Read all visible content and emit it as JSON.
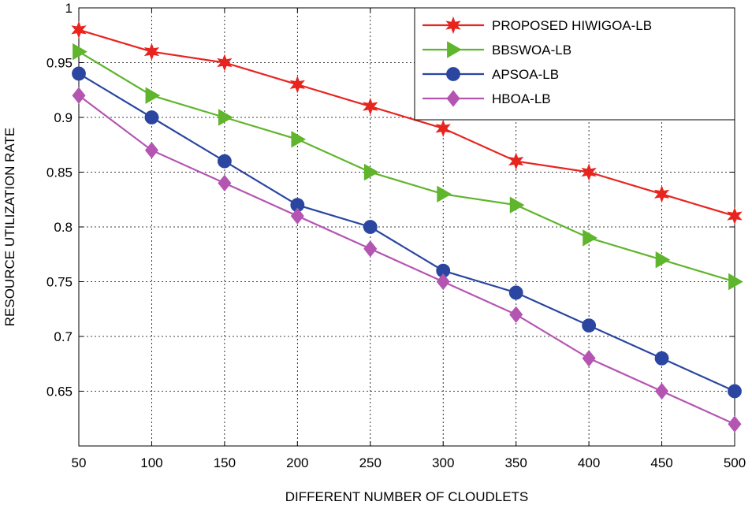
{
  "chart_data": {
    "type": "line",
    "title": "",
    "xlabel": "DIFFERENT NUMBER OF CLOUDLETS",
    "ylabel": "RESOURCE UTILIZATION RATE",
    "x": [
      50,
      100,
      150,
      200,
      250,
      300,
      350,
      400,
      450,
      500
    ],
    "xlim": [
      50,
      500
    ],
    "ylim": [
      0.6,
      1.0
    ],
    "xticks": [
      "50",
      "100",
      "150",
      "200",
      "250",
      "300",
      "350",
      "400",
      "450",
      "500"
    ],
    "yticks": [
      {
        "value": 0.65,
        "label": "0.65"
      },
      {
        "value": 0.7,
        "label": "0.7"
      },
      {
        "value": 0.75,
        "label": "0.75"
      },
      {
        "value": 0.8,
        "label": "0.8"
      },
      {
        "value": 0.85,
        "label": "0.85"
      },
      {
        "value": 0.9,
        "label": "0.9"
      },
      {
        "value": 0.95,
        "label": "0.95"
      },
      {
        "value": 1.0,
        "label": "1"
      }
    ],
    "grid": true,
    "legend_position": "top-right",
    "series": [
      {
        "name": "PROPOSED HIWIGOA-LB",
        "marker": "star",
        "color": "#e8241f",
        "values": [
          0.98,
          0.96,
          0.95,
          0.93,
          0.91,
          0.89,
          0.86,
          0.85,
          0.83,
          0.81
        ]
      },
      {
        "name": "BBSWOA-LB",
        "marker": "triangle-right",
        "color": "#5fb52b",
        "values": [
          0.96,
          0.92,
          0.9,
          0.88,
          0.85,
          0.83,
          0.82,
          0.79,
          0.77,
          0.75
        ]
      },
      {
        "name": "APSOA-LB",
        "marker": "circle",
        "color": "#2a46a0",
        "values": [
          0.94,
          0.9,
          0.86,
          0.82,
          0.8,
          0.76,
          0.74,
          0.71,
          0.68,
          0.65
        ]
      },
      {
        "name": "HBOA-LB",
        "marker": "diamond",
        "color": "#b455b2",
        "values": [
          0.92,
          0.87,
          0.84,
          0.81,
          0.78,
          0.75,
          0.72,
          0.68,
          0.65,
          0.62
        ]
      }
    ]
  }
}
